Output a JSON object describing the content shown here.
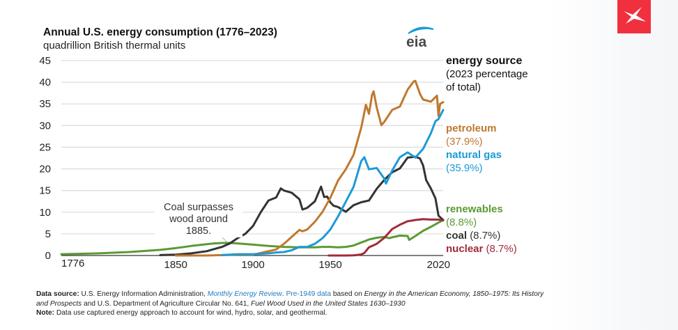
{
  "header": {
    "title": "Annual U.S. energy consumption (1776–2023)",
    "subtitle": "quadrillion British thermal units",
    "logo_text": "eia"
  },
  "legend": {
    "heading": "energy source",
    "heading_sub_1": "(2023 percentage",
    "heading_sub_2": "of total)",
    "items": [
      {
        "name": "petroleum",
        "pct": "(37.9%)",
        "color": "#c0782d"
      },
      {
        "name": "natural gas",
        "pct": "(35.9%)",
        "color": "#1d9ad6"
      },
      {
        "name": "renewables",
        "pct": "(8.8%)",
        "color": "#5b9a32"
      },
      {
        "name": "coal",
        "pct": "(8.7%)",
        "color": "#333333"
      },
      {
        "name": "nuclear",
        "pct": "(8.7%)",
        "color": "#a12a3a"
      }
    ]
  },
  "annotation": {
    "line1": "Coal surpasses",
    "line2": "wood around",
    "line3": "1885."
  },
  "footer": {
    "source_label": "Data source:",
    "source_text_1": " U.S. Energy Information Administration, ",
    "source_link_1": "Monthly Energy Review",
    "source_text_2": ". ",
    "source_link_2": "Pre-1949 data",
    "source_text_3": " based on ",
    "source_italic_1": "Energy in the American Economy, 1850–1975: Its History and Prospects",
    "source_text_4": " and U.S. Department of Agriculture Circular No. 641, ",
    "source_italic_2": "Fuel Wood Used in the United States 1630–1930",
    "note_label": "Note:",
    "note_text": " Data use captured energy approach to account for wind, hydro, solar, and geothermal."
  },
  "chart_data": {
    "type": "line",
    "title": "Annual U.S. energy consumption (1776–2023)",
    "ylabel": "quadrillion British thermal units",
    "xlabel": "",
    "xlim": [
      1776,
      2023
    ],
    "ylim": [
      0,
      45
    ],
    "yticks": [
      0,
      5,
      10,
      15,
      20,
      25,
      30,
      35,
      40,
      45
    ],
    "xticks": [
      "1776",
      "1850",
      "1900",
      "1950",
      "2020"
    ],
    "xtick_values": [
      1776,
      1850,
      1900,
      1950,
      2020
    ],
    "grid": true,
    "legend_position": "right",
    "series": [
      {
        "name": "renewables",
        "color": "#5b9a32",
        "x": [
          1776,
          1800,
          1820,
          1840,
          1850,
          1860,
          1870,
          1875,
          1880,
          1885,
          1890,
          1900,
          1910,
          1920,
          1930,
          1940,
          1945,
          1950,
          1955,
          1960,
          1965,
          1970,
          1973,
          1975,
          1980,
          1985,
          1988,
          1990,
          1995,
          2000,
          2001,
          2005,
          2010,
          2015,
          2020,
          2023
        ],
        "y": [
          0.3,
          0.5,
          0.8,
          1.3,
          1.7,
          2.2,
          2.6,
          2.8,
          2.9,
          2.9,
          2.8,
          2.5,
          2.2,
          2.0,
          1.9,
          1.9,
          2.0,
          2.0,
          1.9,
          2.0,
          2.3,
          3.0,
          3.4,
          3.7,
          4.1,
          4.3,
          4.0,
          4.2,
          4.6,
          4.5,
          3.6,
          4.5,
          5.7,
          6.6,
          7.6,
          8.2
        ]
      },
      {
        "name": "coal",
        "color": "#333333",
        "x": [
          1840,
          1850,
          1860,
          1870,
          1875,
          1880,
          1885,
          1890,
          1895,
          1900,
          1905,
          1910,
          1915,
          1918,
          1920,
          1925,
          1930,
          1932,
          1935,
          1940,
          1944,
          1946,
          1948,
          1950,
          1952,
          1955,
          1960,
          1965,
          1970,
          1975,
          1980,
          1985,
          1990,
          1995,
          2000,
          2005,
          2008,
          2010,
          2012,
          2015,
          2018,
          2020,
          2023
        ],
        "y": [
          0.1,
          0.2,
          0.5,
          1.0,
          1.5,
          2.0,
          2.8,
          4.0,
          5.0,
          6.8,
          10.0,
          12.7,
          13.4,
          15.5,
          15.0,
          14.5,
          13.0,
          10.6,
          11.0,
          12.5,
          15.9,
          13.5,
          13.6,
          12.3,
          11.5,
          11.2,
          10.1,
          11.6,
          12.3,
          12.7,
          15.4,
          17.5,
          19.2,
          20.1,
          22.6,
          22.8,
          22.4,
          20.8,
          17.4,
          15.5,
          13.2,
          9.2,
          8.2
        ]
      },
      {
        "name": "petroleum",
        "color": "#c0782d",
        "x": [
          1850,
          1870,
          1880,
          1890,
          1900,
          1905,
          1910,
          1915,
          1920,
          1925,
          1930,
          1932,
          1935,
          1940,
          1945,
          1950,
          1955,
          1960,
          1965,
          1970,
          1973,
          1975,
          1977,
          1978,
          1980,
          1983,
          1985,
          1990,
          1995,
          2000,
          2004,
          2005,
          2008,
          2010,
          2015,
          2019,
          2020,
          2021,
          2023
        ],
        "y": [
          0.0,
          0.0,
          0.1,
          0.2,
          0.2,
          0.6,
          1.0,
          1.4,
          2.7,
          4.3,
          5.9,
          5.6,
          6.0,
          7.8,
          10.1,
          13.3,
          17.3,
          19.9,
          23.2,
          29.5,
          34.8,
          32.7,
          37.1,
          37.9,
          34.2,
          30.1,
          30.9,
          33.6,
          34.4,
          38.3,
          40.2,
          40.3,
          37.3,
          36.0,
          35.5,
          36.9,
          32.2,
          35.0,
          35.4
        ]
      },
      {
        "name": "natural gas",
        "color": "#1d9ad6",
        "x": [
          1880,
          1890,
          1900,
          1905,
          1910,
          1915,
          1920,
          1925,
          1930,
          1935,
          1940,
          1945,
          1950,
          1955,
          1960,
          1965,
          1970,
          1972,
          1975,
          1980,
          1985,
          1986,
          1990,
          1995,
          2000,
          2005,
          2008,
          2010,
          2015,
          2018,
          2020,
          2023
        ],
        "y": [
          0.1,
          0.3,
          0.3,
          0.4,
          0.5,
          0.7,
          0.8,
          1.2,
          2.0,
          2.0,
          2.7,
          4.0,
          6.0,
          9.0,
          12.4,
          15.8,
          21.8,
          22.7,
          19.9,
          20.2,
          17.7,
          16.6,
          19.6,
          22.7,
          23.8,
          22.6,
          23.8,
          24.6,
          28.2,
          31.0,
          31.5,
          33.6
        ]
      },
      {
        "name": "nuclear",
        "color": "#a12a3a",
        "x": [
          1949,
          1957,
          1960,
          1965,
          1970,
          1972,
          1975,
          1980,
          1985,
          1990,
          1995,
          2000,
          2005,
          2010,
          2015,
          2020,
          2023
        ],
        "y": [
          0.0,
          0.0,
          0.0,
          0.04,
          0.24,
          0.6,
          1.9,
          2.7,
          4.1,
          6.1,
          7.1,
          7.9,
          8.2,
          8.4,
          8.3,
          8.3,
          8.1
        ]
      }
    ]
  }
}
